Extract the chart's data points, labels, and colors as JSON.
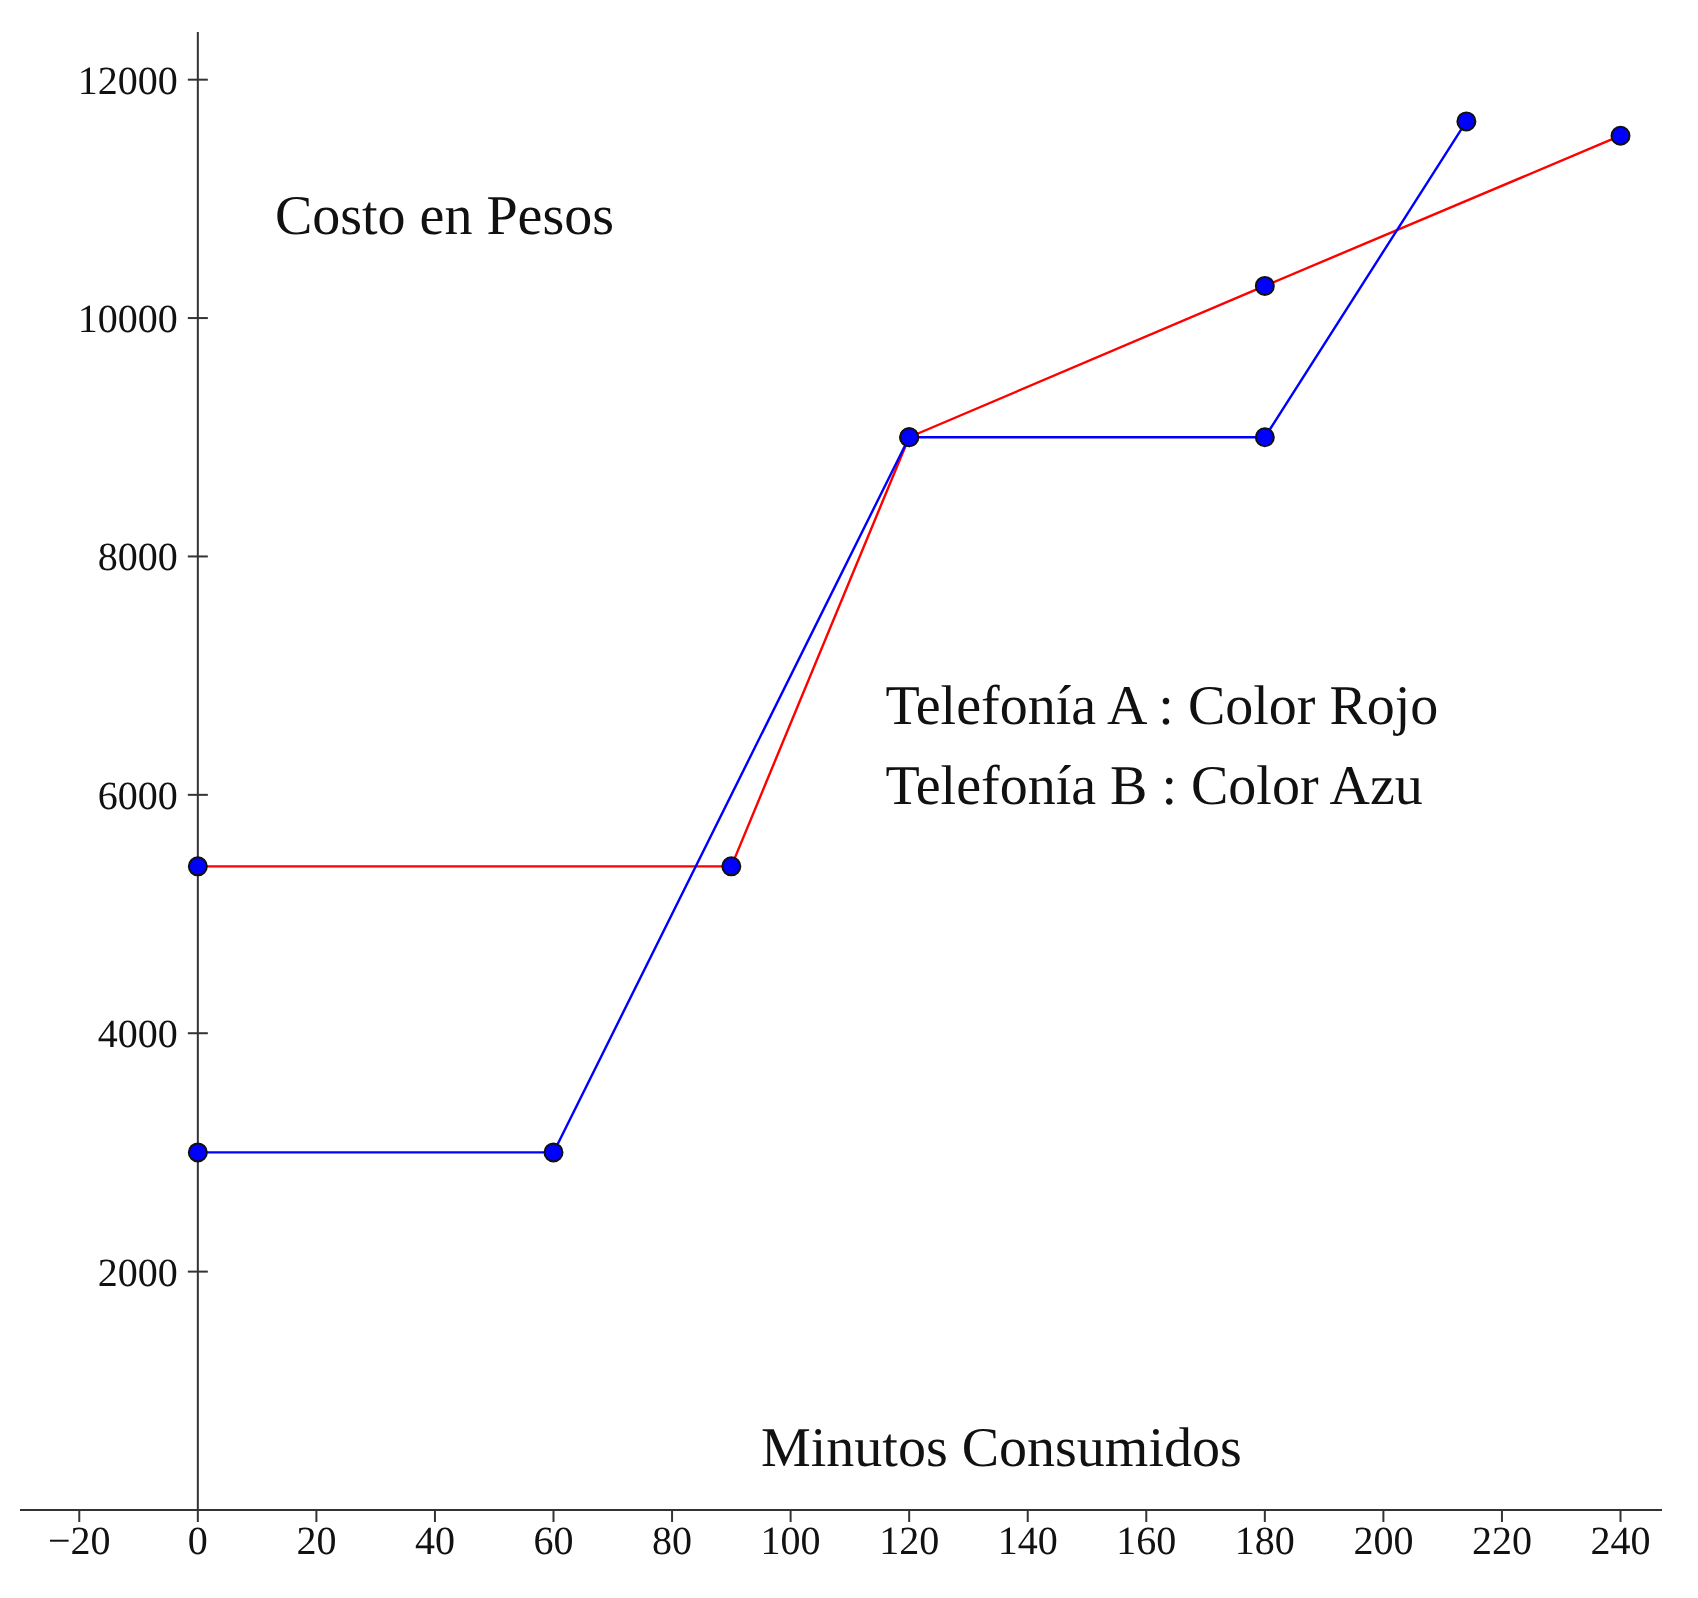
{
  "chart_data": {
    "type": "line",
    "xlabel": "Minutos Consumidos",
    "ylabel": "Costo en Pesos",
    "annotations": [
      "Telefonía A : Color Rojo",
      "Telefonía B : Color Azu"
    ],
    "series": [
      {
        "color": "#ff0000",
        "x": [
          0,
          90,
          120,
          180,
          240
        ],
        "values": [
          5400,
          5400,
          9000,
          10270,
          11530
        ]
      },
      {
        "color": "#0000ff",
        "x": [
          0,
          60,
          120,
          180,
          214
        ],
        "values": [
          3000,
          3000,
          9000,
          9000,
          11650
        ]
      }
    ],
    "xlim": [
      -30,
      247
    ],
    "ylim": [
      0,
      12400
    ],
    "xticks": [
      -20,
      0,
      20,
      40,
      60,
      80,
      100,
      120,
      140,
      160,
      180,
      200,
      220,
      240
    ],
    "yticks": [
      2000,
      4000,
      6000,
      8000,
      10000,
      12000
    ],
    "marker": "circle",
    "grid": false,
    "legend": false
  }
}
